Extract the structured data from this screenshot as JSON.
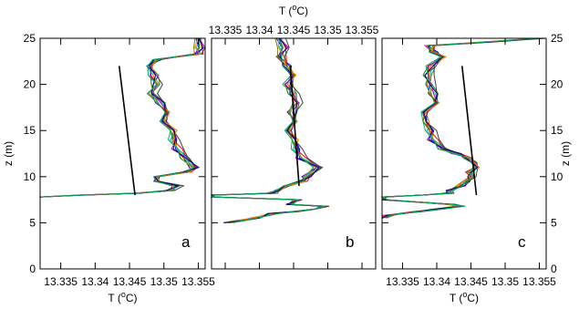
{
  "chart_data": [
    {
      "type": "line",
      "panel": "a",
      "xlabel": "T (°C)",
      "ylabel": "z (m)",
      "xlim": [
        13.332,
        13.356
      ],
      "ylim": [
        0,
        25
      ],
      "xticks": [
        "13.335",
        "13.34",
        "13.345",
        "13.35",
        "13.355"
      ],
      "yticks": [
        "0",
        "5",
        "10",
        "15",
        "20",
        "25"
      ],
      "fit_line": {
        "x": [
          13.3435,
          13.3458
        ],
        "y": [
          22,
          8
        ]
      },
      "profile": {
        "z": [
          25,
          24,
          23.3,
          22.7,
          22,
          21,
          20,
          19,
          18,
          17,
          16,
          15,
          14,
          13,
          12,
          11,
          10.5,
          10,
          9.5,
          9,
          8.5,
          8.2,
          8,
          7.8
        ],
        "T": [
          13.3552,
          13.3552,
          13.355,
          13.349,
          13.3475,
          13.3485,
          13.349,
          13.3482,
          13.3495,
          13.3505,
          13.3502,
          13.351,
          13.3515,
          13.352,
          13.353,
          13.3545,
          13.3535,
          13.349,
          13.3485,
          13.352,
          13.351,
          13.3462,
          13.338,
          13.332
        ]
      }
    },
    {
      "type": "line",
      "panel": "b",
      "xlabel": "T (°C)",
      "xlim": [
        13.333,
        13.357
      ],
      "ylim": [
        0,
        25
      ],
      "xticks": [
        "13.335",
        "13.34",
        "13.345",
        "13.35",
        "13.355"
      ],
      "fit_line": {
        "x": [
          13.3445,
          13.3458
        ],
        "y": [
          22,
          9
        ]
      },
      "profile": {
        "z": [
          25,
          24,
          23,
          22,
          21,
          20,
          19,
          18,
          17,
          16,
          15,
          14,
          13,
          12,
          11,
          10,
          9.5,
          9,
          8.5,
          8.2,
          8,
          7.8,
          7.5,
          7,
          6.8,
          6.5,
          6.2,
          6,
          5.5,
          5.2,
          5
        ],
        "T": [
          13.343,
          13.3435,
          13.3432,
          13.344,
          13.3445,
          13.3442,
          13.345,
          13.3455,
          13.3448,
          13.3452,
          13.3445,
          13.3448,
          13.3455,
          13.3462,
          13.3485,
          13.347,
          13.3465,
          13.344,
          13.3422,
          13.3418,
          13.333,
          13.333,
          13.3455,
          13.3445,
          13.3495,
          13.3475,
          13.345,
          13.342,
          13.3395,
          13.337,
          13.3355
        ]
      }
    },
    {
      "type": "line",
      "panel": "c",
      "xlabel": "T (°C)",
      "ylabel": "z (m)",
      "xlim": [
        13.332,
        13.356
      ],
      "ylim": [
        0,
        25
      ],
      "xticks": [
        "13.335",
        "13.34",
        "13.345",
        "13.35",
        "13.355"
      ],
      "yticks": [
        "0",
        "5",
        "10",
        "15",
        "20",
        "25"
      ],
      "fit_line": {
        "x": [
          13.3437,
          13.3458
        ],
        "y": [
          22,
          8
        ]
      },
      "profile": {
        "z": [
          25,
          24.6,
          24.2,
          23.5,
          23,
          22,
          21,
          20,
          19,
          18,
          17,
          16,
          15,
          14,
          13,
          12.5,
          12,
          11.5,
          11,
          10.5,
          10,
          9.5,
          9,
          8.5,
          8.2,
          8,
          7.8,
          7.5,
          7,
          6.8,
          6.5,
          6.2,
          6,
          5.8,
          5.5
        ],
        "T": [
          13.3552,
          13.3475,
          13.339,
          13.3395,
          13.3405,
          13.3392,
          13.3388,
          13.339,
          13.3395,
          13.34,
          13.3385,
          13.338,
          13.3392,
          13.3395,
          13.3408,
          13.343,
          13.3448,
          13.3455,
          13.3453,
          13.345,
          13.3452,
          13.3445,
          13.3435,
          13.342,
          13.3418,
          13.3372,
          13.332,
          13.332,
          13.3422,
          13.3435,
          13.3405,
          13.337,
          13.3345,
          13.333,
          13.332
        ]
      }
    }
  ],
  "panel_a": {
    "letter": "a",
    "ylabel": "z (m)",
    "xlabel": "T (°C)"
  },
  "panel_b": {
    "letter": "b",
    "xlabel": "T (°C)"
  },
  "panel_c": {
    "letter": "c",
    "ylabel": "z (m)",
    "xlabel": "T (°C)"
  },
  "colors": {
    "fit_line": "#000000",
    "frame": "#000000",
    "series": [
      "#0000ff",
      "#008000",
      "#ff0000",
      "#00bfbf",
      "#bf00bf",
      "#7f7f00",
      "#404040",
      "#ff7f00",
      "#000080",
      "#00aa55"
    ]
  }
}
